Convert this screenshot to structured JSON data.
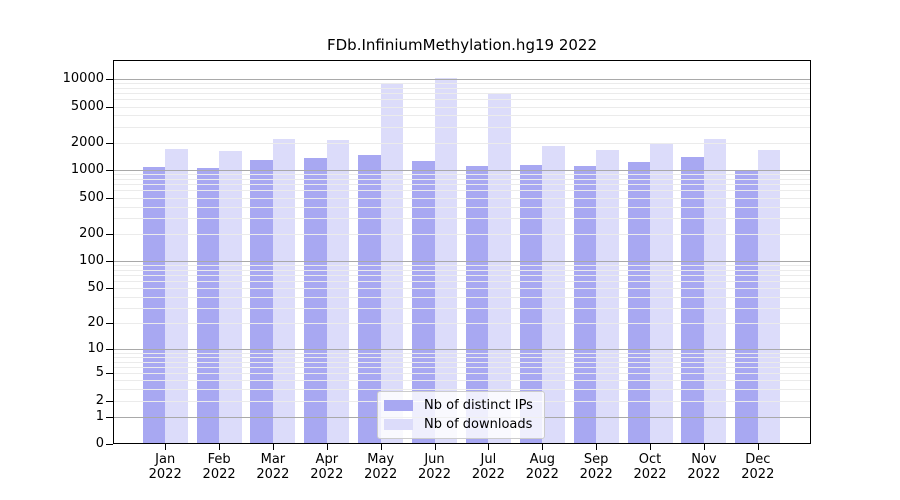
{
  "title": "FDb.InfiniumMethylation.hg19 2022",
  "colors": {
    "ips_bar": "#a8a8f2",
    "downloads_bar": "#dcdcfa",
    "grid_minor": "#ebebeb",
    "grid_major": "#a9a9a9",
    "axis": "#000000"
  },
  "legend": {
    "entries": [
      {
        "label": "Nb of distinct IPs",
        "color": "#a8a8f2"
      },
      {
        "label": "Nb of downloads",
        "color": "#dcdcfa"
      }
    ]
  },
  "chart_data": {
    "type": "bar",
    "title": "FDb.InfiniumMethylation.hg19 2022",
    "categories": [
      "Jan",
      "Feb",
      "Mar",
      "Apr",
      "May",
      "Jun",
      "Jul",
      "Aug",
      "Sep",
      "Oct",
      "Nov",
      "Dec"
    ],
    "year": "2022",
    "series": [
      {
        "name": "Nb of distinct IPs",
        "color": "#a8a8f2",
        "values": [
          1080,
          1060,
          1290,
          1370,
          1460,
          1250,
          1100,
          1140,
          1100,
          1230,
          1400,
          970
        ]
      },
      {
        "name": "Nb of downloads",
        "color": "#dcdcfa",
        "values": [
          1700,
          1610,
          2230,
          2130,
          8880,
          10300,
          7000,
          1850,
          1660,
          1940,
          2200,
          1650
        ]
      }
    ],
    "xlabel": "",
    "ylabel": "",
    "yscale": "log1p",
    "yticks": [
      0,
      1,
      2,
      5,
      10,
      20,
      50,
      100,
      200,
      500,
      1000,
      2000,
      5000,
      10000
    ],
    "ylim": [
      0,
      16000
    ],
    "grid": true,
    "legend_position": "bottom-center"
  }
}
